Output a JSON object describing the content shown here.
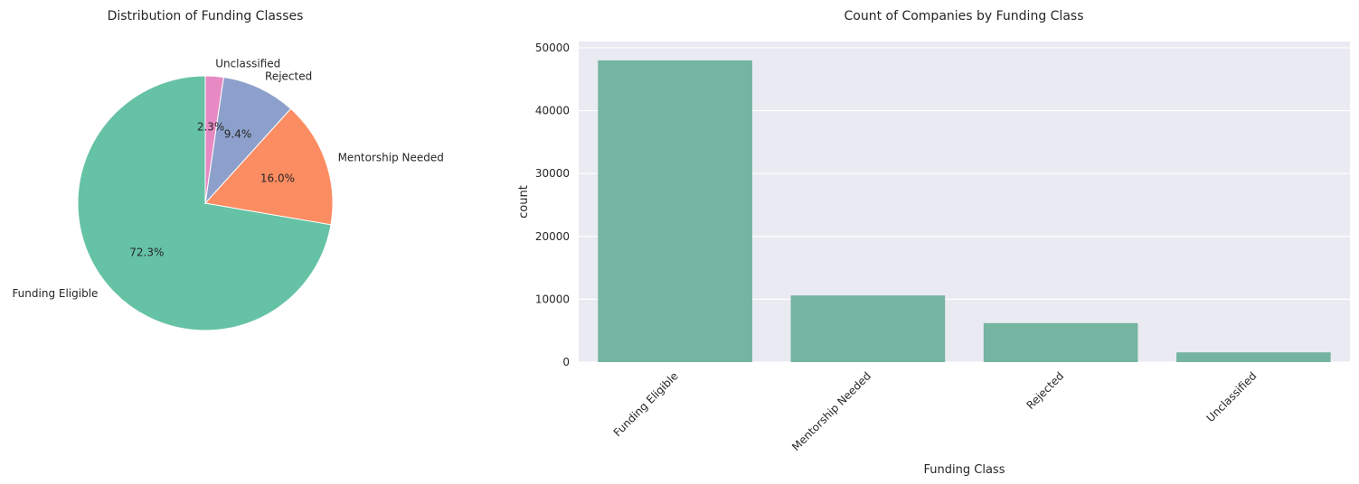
{
  "chart_data": [
    {
      "type": "pie",
      "title": "Distribution of Funding Classes",
      "labels": [
        "Funding Eligible",
        "Mentorship Needed",
        "Rejected",
        "Unclassified"
      ],
      "values": [
        72.3,
        16.0,
        9.4,
        2.3
      ],
      "autopct_labels": [
        "72.3%",
        "16.0%",
        "9.4%",
        "2.3%"
      ],
      "colors": [
        "#66c2a5",
        "#fc8d62",
        "#8da0cb",
        "#e78ac3"
      ],
      "start_angle": 90,
      "direction": "counterclockwise"
    },
    {
      "type": "bar",
      "title": "Count of Companies by Funding Class",
      "categories": [
        "Funding Eligible",
        "Mentorship Needed",
        "Rejected",
        "Unclassified"
      ],
      "values": [
        48000,
        10600,
        6200,
        1550
      ],
      "xlabel": "Funding Class",
      "ylabel": "count",
      "ylim": [
        0,
        51000
      ],
      "yticks": [
        0,
        10000,
        20000,
        30000,
        40000,
        50000
      ],
      "bar_color": "#74b4a0",
      "background": "#eaeaf2",
      "grid": true
    }
  ]
}
